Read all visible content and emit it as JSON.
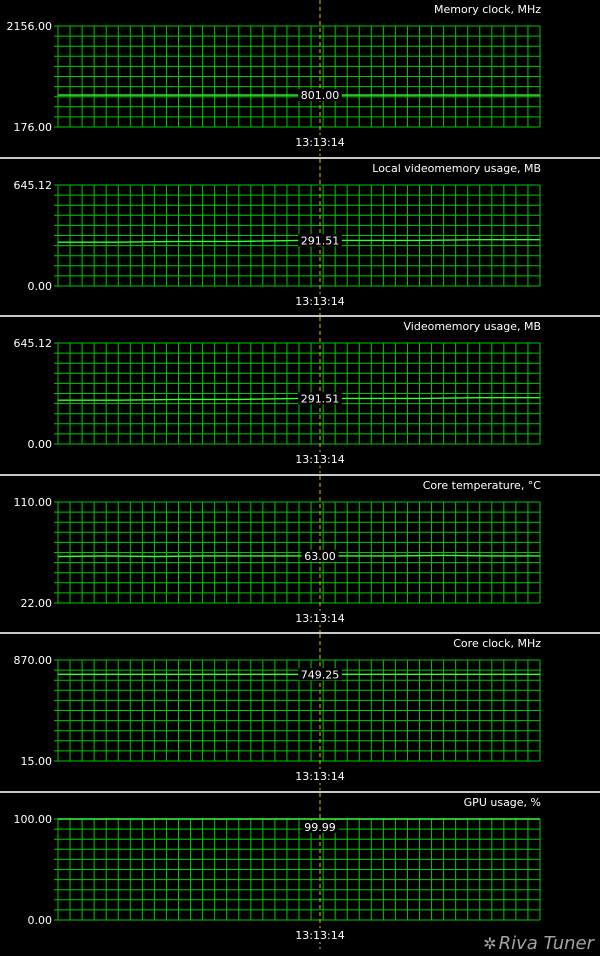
{
  "colors": {
    "background": "#000000",
    "grid": "#00c800",
    "line": "#33ff33",
    "cursor": "#e8c000",
    "text": "#ffffff",
    "divider": "#c8c8c8"
  },
  "cursor_time": "13:13:14",
  "watermark": {
    "text": "Riva Tuner",
    "icon": "gear-icon"
  },
  "chart_data": [
    {
      "type": "line",
      "title": "Memory clock, MHz",
      "ylim": [
        176.0,
        2156.0
      ],
      "ymax_label": "2156.00",
      "ymin_label": "176.00",
      "current_label": "801.00",
      "series": [
        {
          "values": [
            801,
            801,
            801,
            801,
            801,
            801,
            801,
            801
          ]
        }
      ]
    },
    {
      "type": "line",
      "title": "Local videomemory usage, MB",
      "ylim": [
        0.0,
        645.12
      ],
      "ymax_label": "645.12",
      "ymin_label": "0.00",
      "current_label": "291.51",
      "series": [
        {
          "values": [
            280,
            280,
            285,
            285,
            291.51,
            291.51,
            291.51,
            296,
            296
          ]
        }
      ]
    },
    {
      "type": "line",
      "title": "Videomemory usage, MB",
      "ylim": [
        0.0,
        645.12
      ],
      "ymax_label": "645.12",
      "ymin_label": "0.00",
      "current_label": "291.51",
      "series": [
        {
          "values": [
            280,
            280,
            285,
            285,
            291.51,
            291.51,
            291.51,
            296,
            296
          ]
        }
      ]
    },
    {
      "type": "line",
      "title": "Core temperature, °C",
      "ylim": [
        22.0,
        110.0
      ],
      "ymax_label": "110.00",
      "ymin_label": "22.00",
      "current_label": "63.00",
      "series": [
        {
          "values": [
            62.5,
            63,
            62.5,
            63,
            63,
            63,
            63,
            63,
            63.5,
            63,
            63
          ]
        }
      ]
    },
    {
      "type": "line",
      "title": "Core clock, MHz",
      "ylim": [
        15.0,
        870.0
      ],
      "ymax_label": "870.00",
      "ymin_label": "15.00",
      "current_label": "749.25",
      "series": [
        {
          "values": [
            749.25,
            749.25,
            749.25,
            749.25,
            749.25,
            749.25
          ]
        }
      ]
    },
    {
      "type": "line",
      "title": "GPU usage, %",
      "ylim": [
        0.0,
        100.0
      ],
      "ymax_label": "100.00",
      "ymin_label": "0.00",
      "current_label": "99.99",
      "series": [
        {
          "values": [
            99.99,
            99.99,
            99.99,
            99.99,
            99.99,
            99.99
          ]
        }
      ]
    }
  ]
}
